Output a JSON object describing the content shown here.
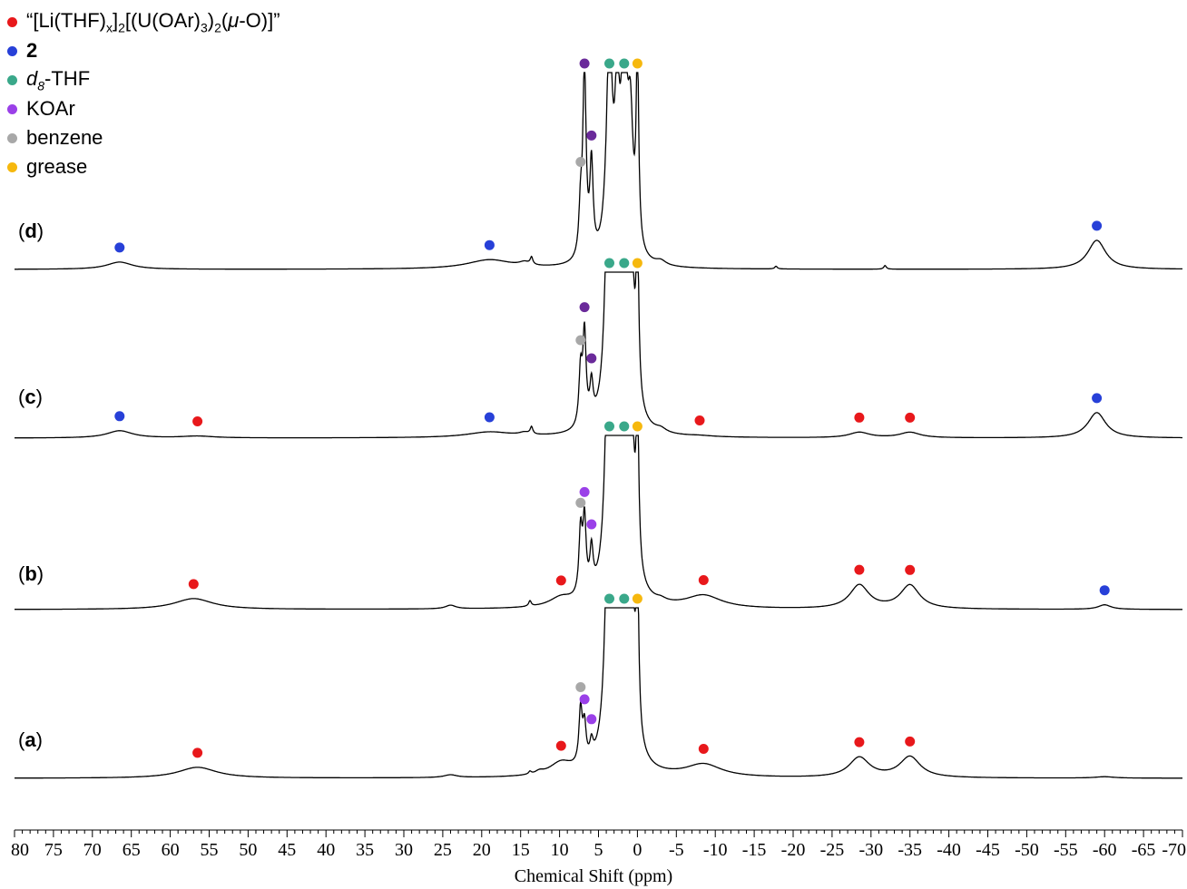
{
  "chart_data": {
    "type": "line",
    "xlabel": "Chemical Shift (ppm)",
    "x_axis_reversed": true,
    "xlim": [
      80,
      -70
    ],
    "tick_labels": [
      "80",
      "75",
      "70",
      "65",
      "60",
      "55",
      "50",
      "45",
      "40",
      "35",
      "30",
      "25",
      "20",
      "15",
      "10",
      "5",
      "0",
      "-5",
      "-10",
      "-15",
      "-20",
      "-25",
      "-30",
      "-35",
      "-40",
      "-45",
      "-50",
      "-55",
      "-60",
      "-65",
      "-70"
    ],
    "tick_values": [
      80,
      75,
      70,
      65,
      60,
      55,
      50,
      45,
      40,
      35,
      30,
      25,
      20,
      15,
      10,
      5,
      0,
      -5,
      -10,
      -15,
      -20,
      -25,
      -30,
      -35,
      -40,
      -45,
      -50,
      -55,
      -60,
      -65,
      -70
    ],
    "minor_tick_step": 1,
    "legend": [
      {
        "label": "“[Li(THF)x]2[(U(OAr)3)2(μ-O)]”",
        "color": "#e8181b",
        "key": "red"
      },
      {
        "label": "2",
        "color": "#2740d8",
        "key": "blue"
      },
      {
        "label": "d8-THF",
        "color": "#3aa88a",
        "key": "teal"
      },
      {
        "label": "KOAr",
        "color": "#9a40e8",
        "key": "purple"
      },
      {
        "label": "benzene",
        "color": "#a8a8a8",
        "key": "gray"
      },
      {
        "label": "grease",
        "color": "#f6b80e",
        "key": "yellow"
      }
    ],
    "legend_position": "top-left",
    "series": [
      {
        "label": "a",
        "peaks": [
          {
            "shift": 56.5,
            "height": 12,
            "width": 3.0,
            "marker": "red"
          },
          {
            "shift": 24,
            "height": 3,
            "width": 1.0
          },
          {
            "shift": 13.8,
            "height": 3,
            "width": 0.2
          },
          {
            "shift": 12.6,
            "height": 3,
            "width": 0.6
          },
          {
            "shift": 9.8,
            "height": 14,
            "width": 1.8,
            "marker": "red"
          },
          {
            "shift": 7.3,
            "height": 60,
            "width": 0.25,
            "marker": "gray"
          },
          {
            "shift": 6.8,
            "height": 40,
            "width": 0.25,
            "marker": "purple"
          },
          {
            "shift": 5.9,
            "height": 18,
            "width": 0.25,
            "marker": "purple"
          },
          {
            "shift": 3.6,
            "height": 400,
            "width": 0.45,
            "marker": "teal"
          },
          {
            "shift": 2.6,
            "height": 200,
            "width": 0.35
          },
          {
            "shift": 1.7,
            "height": 400,
            "width": 0.45,
            "marker": "teal"
          },
          {
            "shift": 0.9,
            "height": 250,
            "width": 0.4
          },
          {
            "shift": 0.0,
            "height": 180,
            "width": 0.2,
            "marker": "yellow"
          },
          {
            "shift": -8.5,
            "height": 14,
            "width": 2.8,
            "marker": "red"
          },
          {
            "shift": -28.5,
            "height": 22,
            "width": 1.6,
            "marker": "red"
          },
          {
            "shift": -35.0,
            "height": 23,
            "width": 1.6,
            "marker": "red"
          },
          {
            "shift": -60.0,
            "height": 1.5,
            "width": 1.5
          }
        ]
      },
      {
        "label": "b",
        "peaks": [
          {
            "shift": 57,
            "height": 12,
            "width": 3.0,
            "marker": "red"
          },
          {
            "shift": 24,
            "height": 4,
            "width": 0.8
          },
          {
            "shift": 13.8,
            "height": 6,
            "width": 0.2
          },
          {
            "shift": 9.8,
            "height": 10,
            "width": 1.8,
            "marker": "red"
          },
          {
            "shift": 7.3,
            "height": 70,
            "width": 0.25,
            "marker": "gray"
          },
          {
            "shift": 6.8,
            "height": 80,
            "width": 0.25,
            "marker": "purple"
          },
          {
            "shift": 5.9,
            "height": 45,
            "width": 0.25,
            "marker": "purple"
          },
          {
            "shift": 3.6,
            "height": 400,
            "width": 0.45,
            "marker": "teal"
          },
          {
            "shift": 2.6,
            "height": 160,
            "width": 0.35
          },
          {
            "shift": 1.7,
            "height": 400,
            "width": 0.45,
            "marker": "teal"
          },
          {
            "shift": 0.9,
            "height": 220,
            "width": 0.4
          },
          {
            "shift": 0.0,
            "height": 180,
            "width": 0.2,
            "marker": "yellow"
          },
          {
            "shift": -3.0,
            "height": 3,
            "width": 0.8
          },
          {
            "shift": -8.5,
            "height": 14,
            "width": 2.8,
            "marker": "red"
          },
          {
            "shift": -28.5,
            "height": 26,
            "width": 1.5,
            "marker": "red"
          },
          {
            "shift": -35.0,
            "height": 26,
            "width": 1.5,
            "marker": "red"
          },
          {
            "shift": -60.0,
            "height": 5,
            "width": 1.0,
            "marker": "blue"
          }
        ]
      },
      {
        "label": "c",
        "peaks": [
          {
            "shift": 66.5,
            "height": 8,
            "width": 2.0,
            "marker": "blue"
          },
          {
            "shift": 56.5,
            "height": 2,
            "width": 2.5,
            "marker": "red"
          },
          {
            "shift": 19,
            "height": 6,
            "width": 3.5,
            "marker": "blue"
          },
          {
            "shift": 14.5,
            "height": 3,
            "width": 0.8
          },
          {
            "shift": 13.6,
            "height": 8,
            "width": 0.2
          },
          {
            "shift": 7.3,
            "height": 60,
            "width": 0.25,
            "marker": "gray"
          },
          {
            "shift": 6.8,
            "height": 100,
            "width": 0.25,
            "marker": "purple"
          },
          {
            "shift": 5.9,
            "height": 40,
            "width": 0.25,
            "marker": "purple"
          },
          {
            "shift": 3.6,
            "height": 400,
            "width": 0.45,
            "marker": "teal"
          },
          {
            "shift": 2.6,
            "height": 150,
            "width": 0.35
          },
          {
            "shift": 1.7,
            "height": 400,
            "width": 0.45,
            "marker": "teal"
          },
          {
            "shift": 0.9,
            "height": 200,
            "width": 0.4
          },
          {
            "shift": 0.0,
            "height": 180,
            "width": 0.2,
            "marker": "yellow"
          },
          {
            "shift": -3.0,
            "height": 4,
            "width": 0.8
          },
          {
            "shift": -8.0,
            "height": 1,
            "width": 2.0,
            "marker": "red"
          },
          {
            "shift": -28.5,
            "height": 6,
            "width": 1.6,
            "marker": "red"
          },
          {
            "shift": -35.0,
            "height": 6,
            "width": 1.6,
            "marker": "red"
          },
          {
            "shift": -59.0,
            "height": 28,
            "width": 1.4,
            "marker": "blue"
          }
        ]
      },
      {
        "label": "d",
        "peaks": [
          {
            "shift": 66.5,
            "height": 8,
            "width": 2.0,
            "marker": "blue"
          },
          {
            "shift": 19,
            "height": 10,
            "width": 3.5,
            "marker": "blue"
          },
          {
            "shift": 14.5,
            "height": 4,
            "width": 0.8
          },
          {
            "shift": 13.6,
            "height": 8,
            "width": 0.2
          },
          {
            "shift": 7.3,
            "height": 50,
            "width": 0.25,
            "marker": "gray"
          },
          {
            "shift": 6.8,
            "height": 210,
            "width": 0.25,
            "marker": "purple"
          },
          {
            "shift": 5.9,
            "height": 100,
            "width": 0.25,
            "marker": "purple"
          },
          {
            "shift": 3.6,
            "height": 240,
            "width": 0.45,
            "marker": "teal"
          },
          {
            "shift": 2.6,
            "height": 150,
            "width": 0.35
          },
          {
            "shift": 1.7,
            "height": 230,
            "width": 0.45,
            "marker": "teal"
          },
          {
            "shift": 0.9,
            "height": 130,
            "width": 0.4
          },
          {
            "shift": 0.0,
            "height": 210,
            "width": 0.2,
            "marker": "yellow"
          },
          {
            "shift": -3.0,
            "height": 5,
            "width": 0.8
          },
          {
            "shift": -17.8,
            "height": 3,
            "width": 0.2
          },
          {
            "shift": -31.8,
            "height": 4,
            "width": 0.2
          },
          {
            "shift": -59.0,
            "height": 32,
            "width": 1.4,
            "marker": "blue"
          }
        ]
      }
    ]
  }
}
